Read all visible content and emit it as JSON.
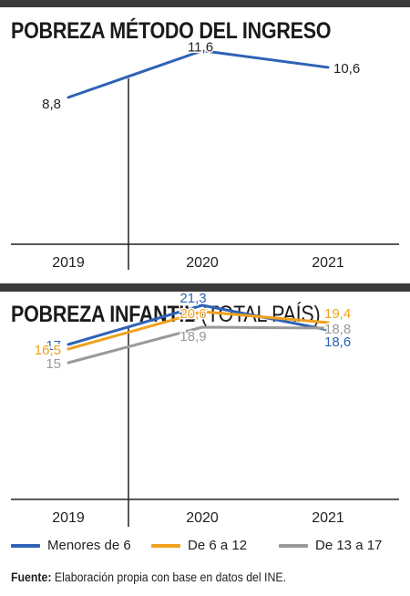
{
  "chart_data": [
    {
      "type": "line",
      "title": "POBREZA MÉTODO DEL INGRESO",
      "x": [
        "2019",
        "2020",
        "2021"
      ],
      "series": [
        {
          "name": "",
          "color": "#2e62b5",
          "values": [
            8.8,
            11.6,
            10.6
          ],
          "labels": [
            "8,8",
            "11,6",
            "10,6"
          ]
        }
      ],
      "ylim": [
        0,
        13
      ],
      "grid": false
    },
    {
      "type": "line",
      "title": "POBREZA INFANTIL",
      "subtitle": "(TOTAL PAÍS)",
      "x": [
        "2019",
        "2020",
        "2021"
      ],
      "series": [
        {
          "name": "Menores de 6",
          "color": "#2e62b5",
          "values": [
            17,
            21.3,
            18.6
          ],
          "labels": [
            "17",
            "21,3",
            "18,6"
          ]
        },
        {
          "name": "De 6 a 12",
          "color": "#f0a11e",
          "values": [
            16.5,
            20.6,
            19.4
          ],
          "labels": [
            "16,5",
            "20,6",
            "19,4"
          ]
        },
        {
          "name": "De 13 a 17",
          "color": "#9a9a9a",
          "values": [
            15,
            18.9,
            18.8
          ],
          "labels": [
            "15",
            "18,9",
            "18,8"
          ]
        }
      ],
      "ylim": [
        0,
        24
      ],
      "legend": "bottom",
      "grid": false
    }
  ],
  "source": {
    "label": "Fuente:",
    "text": " Elaboración propia con base en datos del INE."
  }
}
